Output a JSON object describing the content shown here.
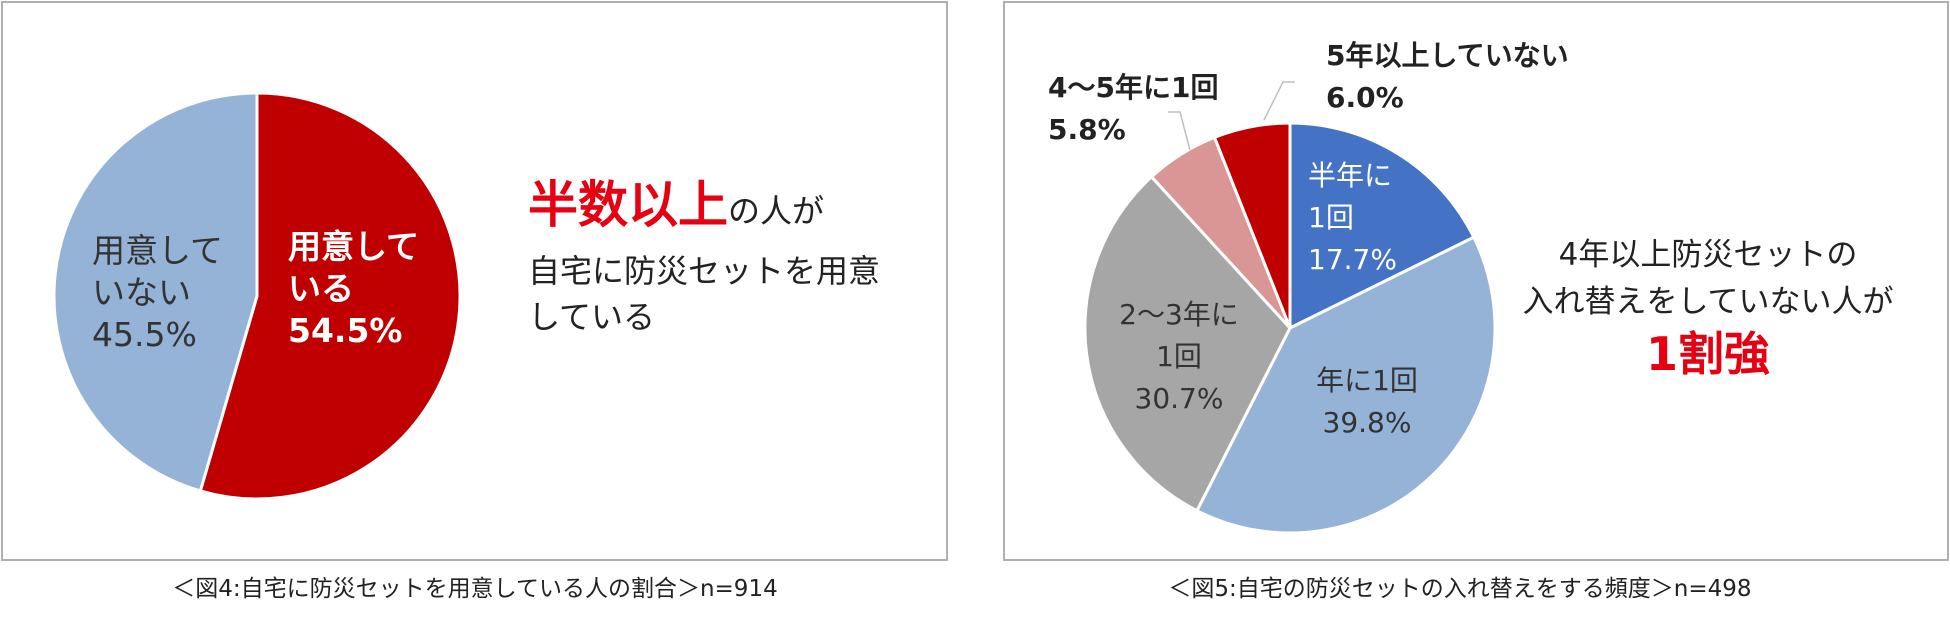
{
  "chart_data": [
    {
      "type": "pie",
      "colors": [
        "#C00000",
        "#95B3D7"
      ],
      "slices": [
        {
          "label_lines": [
            "用意して",
            "いる"
          ],
          "value_label": "54.5%",
          "value": 54.5,
          "color": "#C00000",
          "text_color": "#FFFFFF",
          "bold": true
        },
        {
          "label_lines": [
            "用意して",
            "いない"
          ],
          "value_label": "45.5%",
          "value": 45.5,
          "color": "#95B3D7",
          "text_color": "#333333",
          "bold": false
        }
      ],
      "annotation": {
        "highlight": "半数以上",
        "highlight_suffix": "の人が",
        "line2": "自宅に防災セットを用意",
        "line3": "している",
        "highlight_color": "#E60012"
      },
      "caption": "＜図4:自宅に防災セットを用意している人の割合＞n=914"
    },
    {
      "type": "pie",
      "colors": [
        "#4472C4",
        "#95B3D7",
        "#A6A6A6",
        "#D99694",
        "#C00000"
      ],
      "slices": [
        {
          "label_lines": [
            "半年に",
            "1回"
          ],
          "value_label": "17.7%",
          "value": 17.7,
          "color": "#4472C4",
          "text_color": "#FFFFFF",
          "bold": false
        },
        {
          "label_lines": [
            "年に1回"
          ],
          "value_label": "39.8%",
          "value": 39.8,
          "color": "#95B3D7",
          "text_color": "#333333",
          "bold": false
        },
        {
          "label_lines": [
            "2～3年に",
            "1回"
          ],
          "value_label": "30.7%",
          "value": 30.7,
          "color": "#A6A6A6",
          "text_color": "#333333",
          "bold": false
        },
        {
          "label_lines": [
            "4～5年に1回"
          ],
          "value_label": "5.8%",
          "value": 5.8,
          "color": "#D99694",
          "text_color": "#222222",
          "bold": true
        },
        {
          "label_lines": [
            "5年以上していない"
          ],
          "value_label": "6.0%",
          "value": 6.0,
          "color": "#C00000",
          "text_color": "#222222",
          "bold": true
        }
      ],
      "annotation": {
        "line1": "4年以上防災セットの",
        "line2": "入れ替えをしていない人が",
        "highlight": "1割強",
        "highlight_color": "#E60012"
      },
      "caption": "＜図5:自宅の防災セットの入れ替えをする頻度＞n=498"
    }
  ]
}
